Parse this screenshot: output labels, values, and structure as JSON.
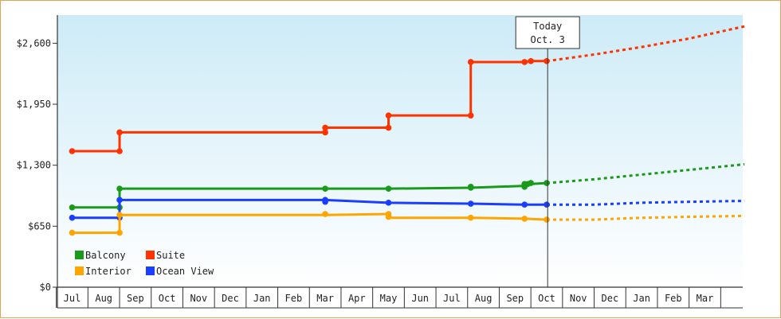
{
  "chart_data": {
    "type": "line",
    "y_axis": {
      "ticks": [
        0,
        650,
        1300,
        1950,
        2600
      ],
      "tick_labels": [
        "$0",
        "$650",
        "$1,300",
        "$1,950",
        "$2,600"
      ],
      "ylim": [
        0,
        2900
      ]
    },
    "x_axis": {
      "months": [
        "Jul",
        "Aug",
        "Sep",
        "Oct",
        "Nov",
        "Dec",
        "Jan",
        "Feb",
        "Mar",
        "Apr",
        "May",
        "Jun",
        "Jul",
        "Aug",
        "Sep",
        "Oct",
        "Nov",
        "Dec",
        "Jan",
        "Feb",
        "Mar"
      ],
      "start_partial_month_fraction": 0.5
    },
    "today_marker": {
      "line1": "Today",
      "line2": "Oct. 3",
      "x": 15.03
    },
    "grid": false,
    "legend": {
      "placement": "bottom-left",
      "entries": [
        {
          "label": "Balcony",
          "color": "#1a9a1a"
        },
        {
          "label": "Suite",
          "color": "#ff3300"
        },
        {
          "label": "Interior",
          "color": "#ffa500"
        },
        {
          "label": "Ocean View",
          "color": "#1a3dff"
        }
      ]
    },
    "series": [
      {
        "name": "Suite",
        "color": "#ff3300",
        "points": [
          [
            0,
            1450
          ],
          [
            1.5,
            1450
          ],
          [
            1.5,
            1650
          ],
          [
            8.0,
            1650
          ],
          [
            8.0,
            1700
          ],
          [
            10.0,
            1700
          ],
          [
            10.0,
            1830
          ],
          [
            12.6,
            1830
          ],
          [
            12.6,
            2400
          ],
          [
            14.3,
            2400
          ],
          [
            14.5,
            2410
          ],
          [
            15.0,
            2410
          ]
        ],
        "markers": [
          [
            0,
            1450
          ],
          [
            1.5,
            1450
          ],
          [
            1.5,
            1650
          ],
          [
            8.0,
            1650
          ],
          [
            8.0,
            1700
          ],
          [
            10.0,
            1700
          ],
          [
            10.0,
            1830
          ],
          [
            12.6,
            1830
          ],
          [
            12.6,
            2400
          ],
          [
            14.3,
            2400
          ],
          [
            14.5,
            2410
          ],
          [
            15.0,
            2410
          ]
        ],
        "forecast": [
          [
            15.0,
            2410
          ],
          [
            16.5,
            2480
          ],
          [
            18.0,
            2560
          ],
          [
            19.5,
            2650
          ],
          [
            21.25,
            2780
          ]
        ]
      },
      {
        "name": "Balcony",
        "color": "#1a9a1a",
        "points": [
          [
            0,
            850
          ],
          [
            1.5,
            850
          ],
          [
            1.5,
            1050
          ],
          [
            8.0,
            1050
          ],
          [
            10.0,
            1050
          ],
          [
            12.6,
            1060
          ],
          [
            14.3,
            1080
          ],
          [
            14.5,
            1100
          ],
          [
            15.0,
            1110
          ]
        ],
        "markers": [
          [
            0,
            850
          ],
          [
            1.5,
            850
          ],
          [
            1.5,
            1050
          ],
          [
            8.0,
            1050
          ],
          [
            10.0,
            1050
          ],
          [
            12.6,
            1060
          ],
          [
            12.6,
            1070
          ],
          [
            14.3,
            1070
          ],
          [
            14.3,
            1100
          ],
          [
            14.4,
            1100
          ],
          [
            14.5,
            1110
          ],
          [
            15.0,
            1110
          ]
        ],
        "forecast": [
          [
            15.0,
            1110
          ],
          [
            16.5,
            1150
          ],
          [
            18.0,
            1200
          ],
          [
            19.5,
            1250
          ],
          [
            21.25,
            1310
          ]
        ]
      },
      {
        "name": "Ocean View",
        "color": "#1a3dff",
        "points": [
          [
            0,
            740
          ],
          [
            1.5,
            740
          ],
          [
            1.5,
            930
          ],
          [
            8.0,
            930
          ],
          [
            10.0,
            900
          ],
          [
            12.6,
            890
          ],
          [
            14.3,
            880
          ],
          [
            15.0,
            880
          ]
        ],
        "markers": [
          [
            0,
            740
          ],
          [
            1.5,
            740
          ],
          [
            1.5,
            930
          ],
          [
            8.0,
            930
          ],
          [
            8.0,
            910
          ],
          [
            10.0,
            900
          ],
          [
            12.6,
            890
          ],
          [
            14.3,
            880
          ],
          [
            15.0,
            880
          ]
        ],
        "forecast": [
          [
            15.0,
            880
          ],
          [
            16.5,
            880
          ],
          [
            18.0,
            900
          ],
          [
            19.5,
            910
          ],
          [
            21.25,
            920
          ]
        ]
      },
      {
        "name": "Interior",
        "color": "#ffa500",
        "points": [
          [
            0,
            580
          ],
          [
            1.5,
            580
          ],
          [
            1.5,
            770
          ],
          [
            8.0,
            770
          ],
          [
            10.0,
            780
          ],
          [
            10.0,
            740
          ],
          [
            12.6,
            740
          ],
          [
            14.3,
            730
          ],
          [
            15.0,
            720
          ]
        ],
        "markers": [
          [
            0,
            580
          ],
          [
            1.5,
            580
          ],
          [
            1.5,
            770
          ],
          [
            8.0,
            780
          ],
          [
            10.0,
            780
          ],
          [
            10.0,
            750
          ],
          [
            12.6,
            740
          ],
          [
            14.3,
            730
          ],
          [
            15.0,
            720
          ]
        ],
        "forecast": [
          [
            15.0,
            720
          ],
          [
            16.5,
            720
          ],
          [
            18.0,
            740
          ],
          [
            19.5,
            750
          ],
          [
            21.25,
            760
          ]
        ]
      }
    ]
  }
}
